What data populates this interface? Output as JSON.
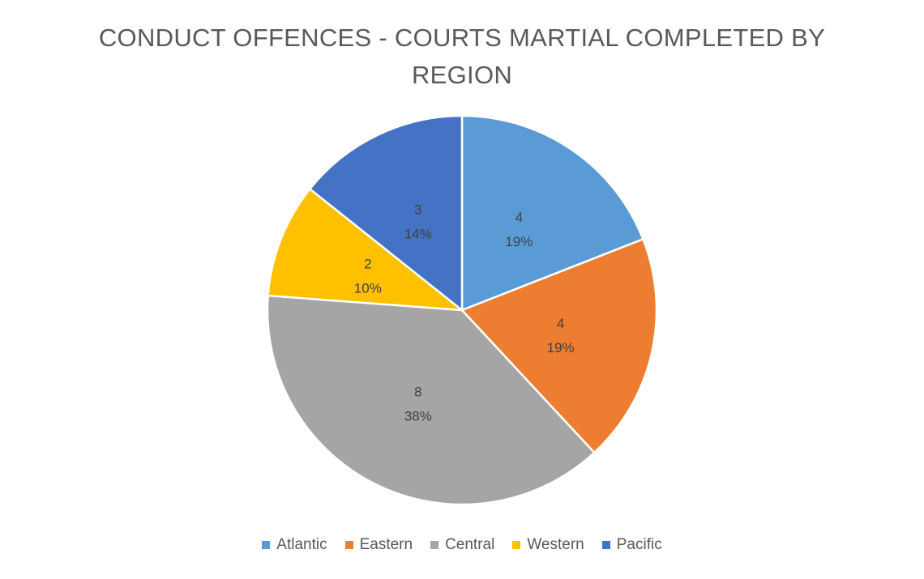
{
  "chart_data": {
    "type": "pie",
    "title": "CONDUCT OFFENCES - COURTS MARTIAL COMPLETED BY REGION",
    "legend_position": "bottom",
    "slices": [
      {
        "label": "Atlantic",
        "value": 4,
        "percent": "19%",
        "color": "#5B9BD5"
      },
      {
        "label": "Eastern",
        "value": 4,
        "percent": "19%",
        "color": "#ED7D31"
      },
      {
        "label": "Central",
        "value": 8,
        "percent": "38%",
        "color": "#A5A5A5"
      },
      {
        "label": "Western",
        "value": 2,
        "percent": "10%",
        "color": "#FFC000"
      },
      {
        "label": "Pacific",
        "value": 3,
        "percent": "14%",
        "color": "#4472C4"
      }
    ]
  }
}
